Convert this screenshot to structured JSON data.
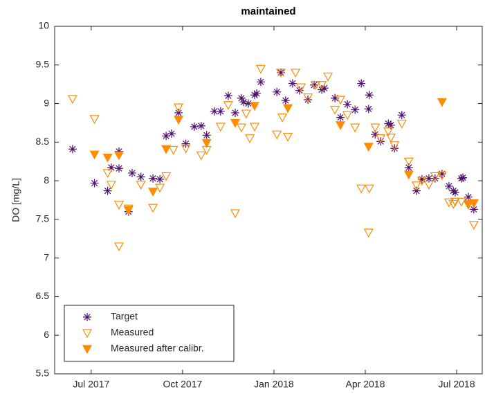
{
  "chart_data": {
    "type": "scatter",
    "title": "maintained",
    "y_label": "DO [mg/L]",
    "xlim": [
      2017.4,
      2018.57
    ],
    "xticks": [
      {
        "value": 2017.5,
        "label": "Jul 2017"
      },
      {
        "value": 2017.75,
        "label": "Oct 2017"
      },
      {
        "value": 2018.0,
        "label": "Jan 2018"
      },
      {
        "value": 2018.25,
        "label": "Apr 2018"
      },
      {
        "value": 2018.5,
        "label": "Jul 2018"
      }
    ],
    "ylim": [
      5.5,
      10
    ],
    "yticks": [
      5.5,
      6,
      6.5,
      7,
      7.5,
      8,
      8.5,
      9,
      9.5,
      10
    ],
    "legend": "lower left",
    "series": [
      {
        "name": "Target",
        "color": "#4b0f6e",
        "marker": "asterisk",
        "x": [
          2017.449,
          2017.509,
          2017.545,
          2017.555,
          2017.576,
          2017.576,
          2017.602,
          2017.612,
          2017.636,
          2017.669,
          2017.688,
          2017.705,
          2017.72,
          2017.739,
          2017.759,
          2017.782,
          2017.801,
          2017.816,
          2017.837,
          2017.854,
          2017.875,
          2017.894,
          2017.911,
          2017.917,
          2017.93,
          2017.947,
          2017.953,
          2017.964,
          2018.008,
          2018.019,
          2018.032,
          2018.051,
          2018.07,
          2018.093,
          2018.11,
          2018.131,
          2018.138,
          2018.167,
          2018.182,
          2018.201,
          2018.222,
          2018.239,
          2018.261,
          2018.259,
          2018.277,
          2018.292,
          2018.313,
          2018.32,
          2018.33,
          2018.35,
          2018.369,
          2018.39,
          2018.405,
          2018.424,
          2018.441,
          2018.46,
          2018.479,
          2018.491,
          2018.496,
          2018.513,
          2018.517,
          2018.532,
          2018.547
        ],
        "values": [
          8.41,
          7.97,
          7.87,
          8.17,
          8.16,
          8.38,
          7.6,
          8.1,
          8.05,
          8.03,
          8.02,
          8.58,
          8.61,
          8.88,
          8.48,
          8.7,
          8.71,
          8.59,
          8.9,
          8.9,
          9.1,
          8.88,
          9.07,
          9.02,
          9.0,
          9.11,
          9.13,
          9.28,
          9.15,
          9.4,
          9.04,
          9.26,
          9.17,
          9.05,
          9.24,
          9.18,
          9.2,
          9.07,
          8.82,
          8.99,
          8.92,
          9.26,
          9.11,
          8.93,
          8.6,
          8.51,
          8.74,
          8.72,
          8.42,
          8.85,
          8.17,
          7.87,
          8.02,
          8.03,
          8.03,
          8.09,
          7.93,
          7.87,
          7.85,
          8.03,
          8.04,
          7.79,
          7.63
        ]
      },
      {
        "name": "Measured",
        "color": "#ff8c00",
        "marker": "triangle-down-open",
        "x": [
          2017.449,
          2017.509,
          2017.545,
          2017.555,
          2017.576,
          2017.576,
          2017.602,
          2017.636,
          2017.669,
          2017.688,
          2017.705,
          2017.725,
          2017.739,
          2017.759,
          2017.801,
          2017.816,
          2017.854,
          2017.875,
          2017.894,
          2017.911,
          2017.924,
          2017.934,
          2017.947,
          2017.964,
          2018.008,
          2018.019,
          2018.023,
          2018.038,
          2018.059,
          2018.074,
          2018.093,
          2018.114,
          2018.131,
          2018.148,
          2018.167,
          2018.182,
          2018.201,
          2018.222,
          2018.239,
          2018.261,
          2018.259,
          2018.277,
          2018.292,
          2018.313,
          2018.32,
          2018.33,
          2018.35,
          2018.369,
          2018.39,
          2018.405,
          2018.424,
          2018.441,
          2018.46,
          2018.479,
          2018.491,
          2018.496,
          2018.513,
          2018.532,
          2018.547,
          2018.547
        ],
        "values": [
          9.06,
          8.8,
          8.1,
          7.95,
          7.69,
          7.15,
          7.64,
          7.95,
          7.65,
          7.91,
          8.06,
          8.4,
          8.95,
          8.42,
          8.33,
          8.4,
          8.7,
          8.98,
          7.58,
          8.69,
          8.87,
          8.55,
          8.7,
          9.45,
          8.6,
          9.4,
          8.82,
          8.57,
          9.4,
          9.21,
          9.08,
          9.24,
          9.24,
          9.35,
          8.92,
          9.05,
          8.85,
          8.69,
          7.9,
          7.9,
          7.33,
          8.69,
          8.55,
          8.64,
          8.56,
          8.46,
          8.74,
          8.25,
          7.94,
          8.0,
          7.95,
          8.06,
          8.07,
          7.72,
          7.7,
          7.73,
          7.73,
          7.69,
          7.71,
          7.43
        ]
      },
      {
        "name": "Measured after calibr.",
        "color": "#ff8c00",
        "marker": "triangle-down-filled",
        "x": [
          2017.509,
          2017.545,
          2017.576,
          2017.602,
          2017.669,
          2017.705,
          2017.739,
          2017.816,
          2017.894,
          2017.947,
          2018.038,
          2018.182,
          2018.259,
          2018.369,
          2018.46,
          2018.532,
          2018.547
        ],
        "values": [
          8.34,
          8.3,
          8.33,
          7.62,
          7.86,
          8.41,
          8.79,
          8.49,
          8.75,
          8.97,
          8.94,
          8.72,
          8.44,
          8.08,
          9.02,
          7.7,
          7.71
        ]
      }
    ]
  }
}
